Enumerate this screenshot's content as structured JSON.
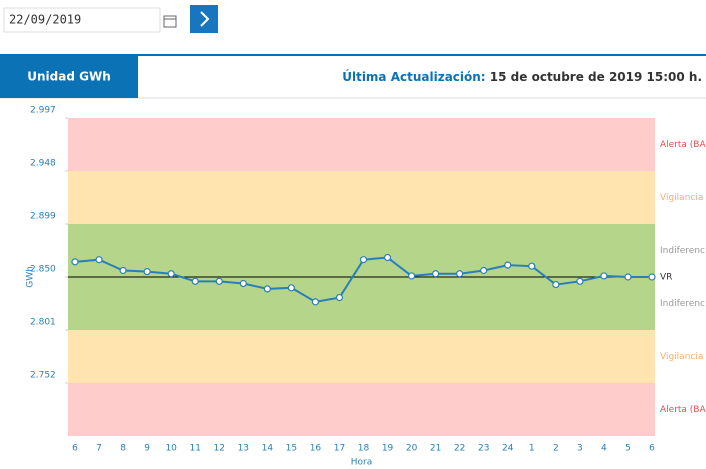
{
  "date_input": {
    "value": "22/09/2019"
  },
  "header": {
    "tab": "Unidad GWh",
    "update_label": "Última Actualización:",
    "update_value": "15 de octubre de 2019 15:00 h."
  },
  "chart_data": {
    "type": "line",
    "categories": [
      "6",
      "7",
      "8",
      "9",
      "10",
      "11",
      "12",
      "13",
      "14",
      "15",
      "16",
      "17",
      "18",
      "19",
      "20",
      "21",
      "22",
      "23",
      "24",
      "1",
      "2",
      "3",
      "4",
      "5",
      "6"
    ],
    "series": [
      {
        "color": "#2a7fb8",
        "values": [
          2.864,
          2.866,
          2.856,
          2.855,
          2.853,
          2.846,
          2.846,
          2.844,
          2.839,
          2.84,
          2.827,
          2.831,
          2.866,
          2.868,
          2.851,
          2.853,
          2.853,
          2.856,
          2.861,
          2.86,
          2.843,
          2.846,
          2.851,
          2.85,
          2.85
        ]
      }
    ],
    "ylim": [
      2.703,
      2.997
    ],
    "yticks": [
      2.997,
      2.948,
      2.899,
      {
        "value": 2.85,
        "label": "2.850"
      },
      2.801,
      2.752
    ],
    "xlabel": "Hora",
    "ylabel": "GWh",
    "bands": [
      {
        "from": 2.948,
        "to": 2.997,
        "color": "#ffcccc",
        "label": "Alerta (BA",
        "label_color": "#e05050"
      },
      {
        "from": 2.899,
        "to": 2.948,
        "color": "#ffe4b0",
        "label": "Vigilancia",
        "label_color": "#f0b070"
      },
      {
        "from": 2.85,
        "to": 2.899,
        "color": "#b5d68a",
        "label": "Indiferenc",
        "label_color": "#999999"
      },
      {
        "from": 2.801,
        "to": 2.85,
        "color": "#b5d68a",
        "label": "Indiferenc",
        "label_color": "#999999"
      },
      {
        "from": 2.752,
        "to": 2.801,
        "color": "#ffe4b0",
        "label": "Vigilancia",
        "label_color": "#f0b070"
      },
      {
        "from": 2.703,
        "to": 2.752,
        "color": "#ffcccc",
        "label": "Alerta (BA",
        "label_color": "#e05050"
      }
    ],
    "reference": {
      "value": 2.85,
      "label": "VR",
      "color": "#000000"
    }
  }
}
